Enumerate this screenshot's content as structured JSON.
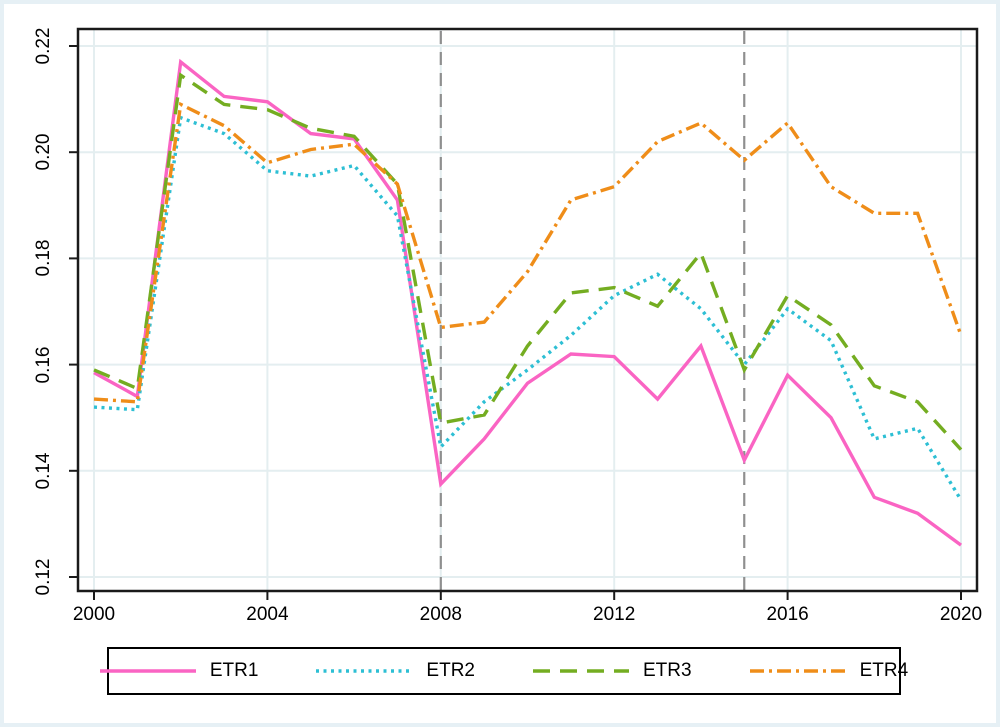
{
  "figure": {
    "background": "#ffffff",
    "frame_color": "#e6f0f5",
    "plot_background": "#ffffff",
    "grid_color": "#e4eef0",
    "axis_color": "#1a1a1a"
  },
  "chart_data": {
    "type": "line",
    "title": "",
    "xlabel": "",
    "ylabel": "",
    "grid": true,
    "legend_position": "bottom",
    "xlim": [
      2000,
      2020
    ],
    "ylim": [
      0.12,
      0.22
    ],
    "xticks": [
      2000,
      2004,
      2008,
      2012,
      2016,
      2020
    ],
    "yticks": [
      "0.12",
      "0.14",
      "0.16",
      "0.18",
      "0.20",
      "0.22"
    ],
    "reference_lines": {
      "x_values": [
        2008,
        2015
      ],
      "color": "#8f8f8f",
      "style": "dashed"
    },
    "x": [
      2000,
      2001,
      2002,
      2003,
      2004,
      2005,
      2006,
      2007,
      2008,
      2009,
      2010,
      2011,
      2012,
      2013,
      2014,
      2015,
      2016,
      2017,
      2018,
      2019,
      2020
    ],
    "series": [
      {
        "name": "ETR1",
        "color": "#fa64c3",
        "dash": "solid",
        "values": [
          0.1585,
          0.154,
          0.217,
          0.2105,
          0.2095,
          0.2035,
          0.2025,
          0.191,
          0.1375,
          0.146,
          0.1565,
          0.162,
          0.1615,
          0.1535,
          0.1635,
          0.142,
          0.158,
          0.15,
          0.135,
          0.132,
          0.126
        ]
      },
      {
        "name": "ETR2",
        "color": "#2dbfd4",
        "dash": "dotted",
        "values": [
          0.152,
          0.1515,
          0.2065,
          0.2035,
          0.1965,
          0.1955,
          0.1975,
          0.188,
          0.1445,
          0.153,
          0.159,
          0.1655,
          0.173,
          0.177,
          0.1705,
          0.16,
          0.1705,
          0.1645,
          0.146,
          0.148,
          0.1345
        ]
      },
      {
        "name": "ETR3",
        "color": "#74ad21",
        "dash": "longdash",
        "values": [
          0.159,
          0.1555,
          0.2145,
          0.209,
          0.208,
          0.2045,
          0.203,
          0.194,
          0.149,
          0.1505,
          0.1635,
          0.1735,
          0.1745,
          0.171,
          0.181,
          0.159,
          0.173,
          0.1675,
          0.156,
          0.153,
          0.144
        ]
      },
      {
        "name": "ETR4",
        "color": "#ef8d19",
        "dash": "dashdot",
        "values": [
          0.1535,
          0.153,
          0.209,
          0.205,
          0.198,
          0.2005,
          0.2015,
          0.194,
          0.167,
          0.168,
          0.1775,
          0.191,
          0.1935,
          0.202,
          0.2055,
          0.1985,
          0.2055,
          0.1935,
          0.1885,
          0.1885,
          0.1655
        ]
      }
    ]
  },
  "legend": {
    "items": [
      "ETR1",
      "ETR2",
      "ETR3",
      "ETR4"
    ]
  }
}
